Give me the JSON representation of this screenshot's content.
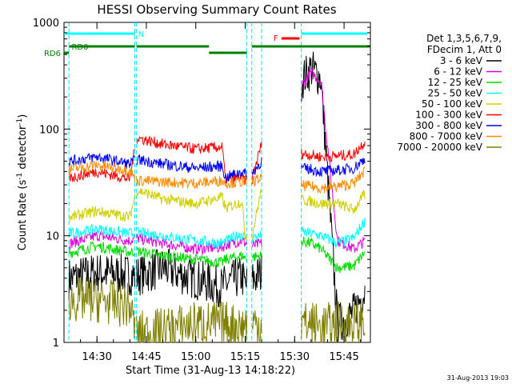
{
  "chart_data": {
    "type": "line",
    "title": "HESSI Observing Summary Count Rates",
    "xlabel": "Start Time (31-Aug-13 14:18:22)",
    "ylabel": "Count Rate (s⁻¹ detector⁻¹)",
    "yscale": "log",
    "ylim": [
      1,
      1000
    ],
    "xlim_minutes_after_1420": [
      0,
      93
    ],
    "x_ticks": [
      "14:30",
      "14:45",
      "15:00",
      "15:15",
      "15:30",
      "15:45"
    ],
    "y_ticks": [
      "1",
      "10",
      "100",
      "1000"
    ],
    "grid": false,
    "legend": {
      "placement": "right",
      "header": [
        "Det 1,3,5,6,7,9,",
        "FDecim 1, Att 0"
      ]
    },
    "flags": {
      "rd0_label": "RD0",
      "rd6_label": "RD6",
      "n_label": "N",
      "f_label": "F"
    },
    "data_gaps_minutes": [
      [
        0,
        1.5
      ],
      [
        21.5,
        22
      ],
      [
        55.5,
        57
      ],
      [
        60,
        72
      ]
    ],
    "series": [
      {
        "name": "3 - 6 keV",
        "color": "#000000",
        "x": [
          2,
          10,
          20,
          22,
          30,
          40,
          48,
          49,
          54,
          55,
          57,
          60,
          66,
          70,
          71,
          75,
          78,
          83,
          88,
          91
        ],
        "y": [
          4.0,
          4.5,
          4.3,
          4.2,
          5.0,
          3.9,
          3.3,
          3.5,
          4.2,
          3.4,
          3.8,
          4.5,
          6,
          14,
          260,
          370,
          300,
          1.5,
          1.9,
          3.0
        ]
      },
      {
        "name": "6 - 12 keV",
        "color": "#e000e0",
        "x": [
          2,
          10,
          20,
          22,
          30,
          40,
          48,
          49,
          54,
          55,
          57,
          60,
          66,
          70,
          71,
          75,
          78,
          83,
          88,
          91
        ],
        "y": [
          8.5,
          10,
          9,
          9.5,
          8.5,
          7.5,
          7.8,
          8.2,
          9,
          8.6,
          8,
          8.5,
          12,
          20,
          230,
          340,
          280,
          9,
          7.5,
          8.8
        ]
      },
      {
        "name": "12 - 25 keV",
        "color": "#00dd00",
        "x": [
          2,
          10,
          20,
          22,
          30,
          40,
          48,
          49,
          54,
          55,
          57,
          60,
          66,
          70,
          71,
          75,
          78,
          83,
          88,
          91
        ],
        "y": [
          7,
          8,
          7,
          7.2,
          6.5,
          6,
          5.6,
          6,
          6.5,
          6.2,
          6.3,
          6.5,
          7,
          8,
          9,
          8.5,
          7.5,
          5,
          5.2,
          6.8
        ]
      },
      {
        "name": "25 - 50 keV",
        "color": "#00ffff",
        "x": [
          2,
          10,
          20,
          22,
          30,
          40,
          48,
          49,
          54,
          55,
          57,
          60,
          66,
          70,
          71,
          75,
          78,
          83,
          88,
          91
        ],
        "y": [
          10.5,
          11.5,
          10.5,
          10.8,
          10,
          9,
          8.5,
          8.8,
          10.5,
          9.5,
          9.6,
          10,
          10.5,
          11,
          11,
          10.5,
          10,
          8.5,
          9.5,
          13.5
        ]
      },
      {
        "name": "50 - 100 keV",
        "color": "#d0d000",
        "x": [
          2,
          10,
          20,
          22,
          30,
          40,
          48,
          49,
          54,
          55,
          57,
          60,
          66,
          70,
          71,
          75,
          78,
          83,
          88,
          91
        ],
        "y": [
          15,
          17,
          15,
          27,
          22,
          20,
          23,
          18,
          21,
          10,
          9.7,
          28,
          26,
          24,
          22,
          21,
          20,
          20,
          17.5,
          24
        ]
      },
      {
        "name": "100 - 300 keV",
        "color": "#ff0000",
        "x": [
          2,
          10,
          20,
          22,
          30,
          40,
          48,
          49,
          54,
          55,
          57,
          60,
          66,
          70,
          71,
          75,
          78,
          83,
          88,
          91
        ],
        "y": [
          35,
          40,
          34,
          83,
          72,
          65,
          68,
          34,
          35,
          33,
          33,
          74,
          70,
          64,
          60,
          57,
          55,
          56,
          58,
          75
        ]
      },
      {
        "name": "300 - 800 keV",
        "color": "#0000ff",
        "x": [
          2,
          10,
          20,
          22,
          30,
          40,
          48,
          49,
          54,
          55,
          57,
          60,
          66,
          70,
          71,
          75,
          78,
          83,
          88,
          91
        ],
        "y": [
          50,
          55,
          47,
          52,
          47,
          43,
          45,
          35,
          40,
          38,
          38,
          50,
          48,
          45,
          43,
          42,
          40,
          41,
          43,
          52
        ]
      },
      {
        "name": "800 - 7000 keV",
        "color": "#ff8c00",
        "x": [
          2,
          10,
          20,
          22,
          30,
          40,
          48,
          49,
          54,
          55,
          57,
          60,
          66,
          70,
          71,
          75,
          78,
          83,
          88,
          91
        ],
        "y": [
          42,
          46,
          41,
          33,
          32,
          31,
          33,
          31,
          32,
          32,
          32,
          35,
          33,
          31,
          30,
          29,
          28,
          29,
          31,
          40
        ]
      },
      {
        "name": "7000 - 20000 keV",
        "color": "#808000",
        "x": [
          2,
          10,
          20,
          22,
          30,
          40,
          48,
          49,
          54,
          55,
          57,
          60,
          66,
          70,
          71,
          75,
          78,
          83,
          88,
          91
        ],
        "y": [
          2.5,
          2.5,
          2.2,
          1.2,
          1.3,
          1.5,
          1.5,
          1.5,
          1.4,
          1.5,
          1.5,
          1.5,
          1.6,
          1.5,
          1.5,
          1.5,
          1.4,
          1.5,
          1.5,
          1.5
        ]
      }
    ]
  },
  "footer": {
    "timestamp": "31-Aug-2013 19:03"
  }
}
